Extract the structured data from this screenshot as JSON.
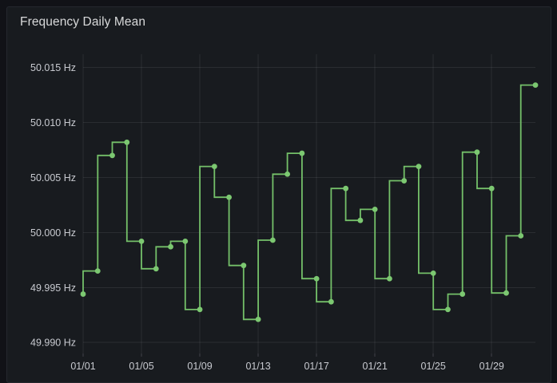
{
  "panel": {
    "title": "Frequency Daily Mean"
  },
  "chart_data": {
    "type": "line",
    "line_style": "step-before",
    "title": "Frequency Daily Mean",
    "xlabel": "",
    "ylabel": "",
    "unit": "Hz",
    "grid": true,
    "legend_position": "none",
    "series_name": "Frequency Daily Mean",
    "series_color": "#74c069",
    "point_color": "#7cc871",
    "categories": [
      "01/01",
      "01/02",
      "01/03",
      "01/04",
      "01/05",
      "01/06",
      "01/07",
      "01/08",
      "01/09",
      "01/10",
      "01/11",
      "01/12",
      "01/13",
      "01/14",
      "01/15",
      "01/16",
      "01/17",
      "01/18",
      "01/19",
      "01/20",
      "01/21",
      "01/22",
      "01/23",
      "01/24",
      "01/25",
      "01/26",
      "01/27",
      "01/28",
      "01/29",
      "01/30",
      "01/31",
      "02/01"
    ],
    "values": [
      49.9944,
      49.9965,
      50.007,
      50.0082,
      49.9992,
      49.9967,
      49.9987,
      49.9992,
      49.993,
      50.006,
      50.0032,
      49.997,
      49.9921,
      49.9993,
      50.0053,
      50.0072,
      49.9958,
      49.9937,
      50.004,
      50.0011,
      50.0021,
      49.9958,
      50.0047,
      50.006,
      49.9963,
      49.993,
      49.9944,
      50.0073,
      50.004,
      49.9945,
      49.9997,
      50.0134
    ],
    "y_ticks": [
      49.99,
      49.995,
      50.0,
      50.005,
      50.01,
      50.015
    ],
    "y_tick_labels": [
      "49.990 Hz",
      "49.995 Hz",
      "50.000 Hz",
      "50.005 Hz",
      "50.010 Hz",
      "50.015 Hz"
    ],
    "x_tick_indexes": [
      0,
      4,
      8,
      12,
      16,
      20,
      24,
      28
    ],
    "x_tick_labels": [
      "01/01",
      "01/05",
      "01/09",
      "01/13",
      "01/17",
      "01/21",
      "01/25",
      "01/29"
    ],
    "ylim": [
      49.989,
      50.0162
    ],
    "colors": {
      "page_background": "#111217",
      "panel_background": "#181b1f",
      "panel_border": "#25282e",
      "grid": "rgba(204,204,220,0.10)",
      "tick_mark": "rgba(204,204,220,0.22)",
      "axis_text": "#c8cad0",
      "title_text": "#d8d9da"
    }
  }
}
